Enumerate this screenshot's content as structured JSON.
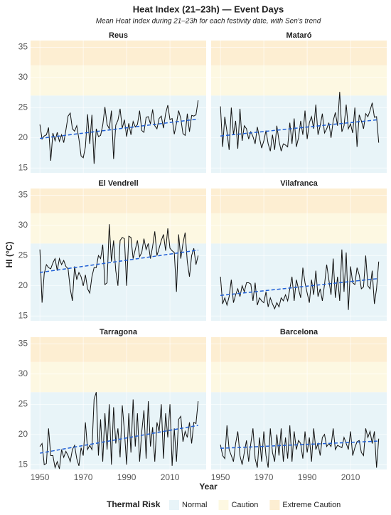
{
  "title": "Heat Index (21–23h) — Event Days",
  "subtitle": "Mean Heat Index during 21–23h for each festivity date, with Sen's trend",
  "chart_data": {
    "type": "line",
    "xlabel": "Year",
    "ylabel": "HI (°C)",
    "legend_title": "Thermal Risk",
    "xlim": [
      1945.7,
      2026.7
    ],
    "xticks": [
      1950,
      1970,
      1990,
      2010
    ],
    "ylim": [
      14.2,
      36.1
    ],
    "yticks": [
      15,
      20,
      25,
      30,
      35
    ],
    "bands": [
      {
        "name": "Normal",
        "color": "#e8f4f8",
        "to": 27
      },
      {
        "name": "Caution",
        "color": "#fdf8e2",
        "to": 32
      },
      {
        "name": "Extreme Caution",
        "color": "#fdeed2"
      }
    ],
    "trend_color": "#1f5fd6",
    "trend_x": [
      1950,
      2023
    ],
    "x": [
      1950,
      1951,
      1952,
      1953,
      1954,
      1955,
      1956,
      1957,
      1958,
      1959,
      1960,
      1961,
      1962,
      1963,
      1964,
      1965,
      1966,
      1967,
      1968,
      1969,
      1970,
      1971,
      1972,
      1973,
      1974,
      1975,
      1976,
      1977,
      1978,
      1979,
      1980,
      1981,
      1982,
      1983,
      1984,
      1985,
      1986,
      1987,
      1988,
      1989,
      1990,
      1991,
      1992,
      1993,
      1994,
      1995,
      1996,
      1997,
      1998,
      1999,
      2000,
      2001,
      2002,
      2003,
      2004,
      2005,
      2006,
      2007,
      2008,
      2009,
      2010,
      2011,
      2012,
      2013,
      2014,
      2015,
      2016,
      2017,
      2018,
      2019,
      2020,
      2021,
      2022,
      2023
    ],
    "series": [
      {
        "name": "Reus",
        "color": "#111111",
        "trend": [
          19.9,
          23.1
        ],
        "values": [
          22.2,
          19.8,
          20.3,
          20.5,
          21.7,
          16.2,
          20.8,
          19.5,
          20.9,
          19.4,
          20.5,
          19.2,
          21.3,
          23.6,
          24.1,
          21.5,
          21.1,
          22.0,
          19.8,
          17.0,
          16.7,
          18.5,
          23.9,
          19.0,
          23.8,
          15.7,
          21.5,
          20.2,
          20.4,
          22.1,
          25.1,
          22.2,
          21.5,
          24.5,
          16.5,
          22.1,
          22.9,
          24.8,
          21.6,
          23.0,
          20.2,
          22.4,
          20.5,
          22.7,
          21.8,
          22.2,
          24.5,
          21.2,
          20.9,
          23.4,
          23.5,
          22.3,
          24.7,
          22.0,
          21.5,
          23.2,
          23.6,
          21.6,
          24.0,
          25.4,
          23.0,
          23.2,
          20.6,
          22.4,
          24.5,
          23.2,
          20.7,
          20.4,
          24.0,
          21.0,
          23.7,
          23.6,
          23.8,
          26.2
        ]
      },
      {
        "name": "Mataró",
        "color": "#111111",
        "trend": [
          20.3,
          23.0
        ],
        "values": [
          25.2,
          18.5,
          23.5,
          21.0,
          18.0,
          25.0,
          20.5,
          22.8,
          18.2,
          24.8,
          19.5,
          22.0,
          21.5,
          19.8,
          21.0,
          20.2,
          19.0,
          21.8,
          20.0,
          18.3,
          19.5,
          21.2,
          19.0,
          17.8,
          20.5,
          18.0,
          22.0,
          19.5,
          17.8,
          19.0,
          18.8,
          18.5,
          22.5,
          19.0,
          23.2,
          18.5,
          20.0,
          22.8,
          20.5,
          24.5,
          19.8,
          22.5,
          23.5,
          21.5,
          25.5,
          20.5,
          22.0,
          24.0,
          20.8,
          21.5,
          22.5,
          20.0,
          22.8,
          24.2,
          22.0,
          27.6,
          21.0,
          22.0,
          25.5,
          21.5,
          22.3,
          20.8,
          25.0,
          18.5,
          23.8,
          22.8,
          21.5,
          24.0,
          23.5,
          24.5,
          25.8,
          23.4,
          23.5,
          19.2
        ]
      },
      {
        "name": "El Vendrell",
        "color": "#111111",
        "trend": [
          22.2,
          25.9
        ],
        "values": [
          26.0,
          17.2,
          22.0,
          23.5,
          23.0,
          22.8,
          23.8,
          24.5,
          22.5,
          24.5,
          23.5,
          24.2,
          23.2,
          22.8,
          19.5,
          17.5,
          23.2,
          21.0,
          22.2,
          21.5,
          20.0,
          21.8,
          19.5,
          18.8,
          21.5,
          23.0,
          23.0,
          25.0,
          24.5,
          26.8,
          20.2,
          20.5,
          30.2,
          24.0,
          27.5,
          22.5,
          20.0,
          27.5,
          28.0,
          27.8,
          20.0,
          28.2,
          28.0,
          24.5,
          26.0,
          27.5,
          24.8,
          25.5,
          27.8,
          26.0,
          27.0,
          24.5,
          26.5,
          29.0,
          25.0,
          26.2,
          27.5,
          28.5,
          25.8,
          29.5,
          26.2,
          25.8,
          25.5,
          19.0,
          28.5,
          24.5,
          27.0,
          28.8,
          24.0,
          21.5,
          25.0,
          26.2,
          23.5,
          25.0
        ]
      },
      {
        "name": "Vilafranca",
        "color": "#111111",
        "trend": [
          18.4,
          21.2
        ],
        "values": [
          21.5,
          17.0,
          18.0,
          16.8,
          18.2,
          21.0,
          17.2,
          18.5,
          19.5,
          18.2,
          20.0,
          19.0,
          20.5,
          20.5,
          20.3,
          17.5,
          20.5,
          16.8,
          18.0,
          17.5,
          17.2,
          19.0,
          16.5,
          18.0,
          17.0,
          16.2,
          17.2,
          16.5,
          18.0,
          17.5,
          18.5,
          17.5,
          19.5,
          21.5,
          17.5,
          21.0,
          19.5,
          18.0,
          23.0,
          20.5,
          18.8,
          17.2,
          21.0,
          18.5,
          22.5,
          18.2,
          19.5,
          17.5,
          20.2,
          23.5,
          21.0,
          18.5,
          24.5,
          18.0,
          21.5,
          17.5,
          26.0,
          19.0,
          25.5,
          16.0,
          23.2,
          20.5,
          20.2,
          23.0,
          21.8,
          19.5,
          19.8,
          25.0,
          20.0,
          19.5,
          22.5,
          17.0,
          19.5,
          24.0
        ]
      },
      {
        "name": "Tarragona",
        "color": "#111111",
        "trend": [
          16.9,
          21.5
        ],
        "values": [
          18.0,
          18.5,
          15.0,
          15.2,
          21.0,
          16.5,
          16.5,
          14.5,
          15.5,
          14.3,
          17.5,
          16.2,
          17.2,
          16.5,
          15.5,
          17.5,
          18.2,
          16.0,
          14.8,
          17.8,
          16.5,
          22.0,
          17.5,
          18.2,
          17.5,
          25.8,
          27.0,
          16.5,
          22.5,
          15.5,
          23.5,
          17.5,
          25.0,
          15.0,
          24.5,
          18.5,
          21.0,
          16.2,
          24.8,
          20.5,
          15.0,
          23.5,
          17.0,
          25.8,
          18.0,
          23.5,
          15.5,
          20.5,
          24.0,
          16.0,
          25.5,
          18.0,
          21.2,
          15.5,
          22.0,
          20.5,
          25.0,
          16.0,
          23.5,
          19.5,
          25.0,
          14.8,
          21.0,
          15.5,
          22.5,
          23.0,
          18.8,
          20.5,
          19.5,
          22.0,
          18.5,
          22.0,
          21.8,
          25.5
        ]
      },
      {
        "name": "Barcelona",
        "color": "#111111",
        "trend": [
          17.7,
          18.9
        ],
        "values": [
          18.3,
          16.5,
          16.0,
          21.5,
          17.5,
          16.5,
          15.5,
          18.5,
          20.5,
          16.5,
          15.0,
          17.0,
          19.0,
          15.5,
          18.5,
          21.0,
          16.0,
          14.5,
          19.5,
          15.5,
          20.5,
          16.5,
          14.5,
          21.0,
          17.0,
          15.5,
          20.0,
          16.5,
          21.0,
          15.5,
          19.5,
          16.0,
          21.5,
          15.5,
          20.5,
          17.5,
          19.0,
          18.5,
          16.0,
          20.5,
          17.0,
          19.5,
          15.5,
          21.0,
          17.5,
          18.5,
          16.5,
          19.5,
          20.0,
          18.0,
          18.5,
          18.0,
          21.0,
          17.5,
          18.2,
          18.0,
          17.8,
          19.5,
          18.5,
          17.5,
          20.5,
          16.5,
          17.8,
          18.8,
          19.0,
          17.0,
          16.5,
          21.0,
          19.5,
          20.5,
          18.5,
          20.5,
          14.5,
          19.3
        ]
      }
    ]
  }
}
